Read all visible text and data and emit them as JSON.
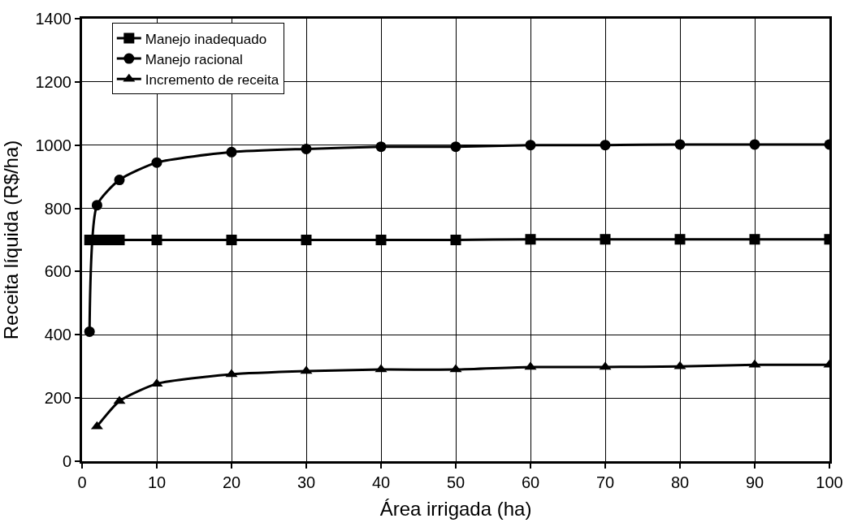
{
  "chart_data": {
    "type": "line",
    "xlabel": "Área irrigada (ha)",
    "ylabel": "Receita líquida (R$/ha)",
    "xlim": [
      0,
      100
    ],
    "xticks": [
      0,
      10,
      20,
      30,
      40,
      50,
      60,
      70,
      80,
      90,
      100
    ],
    "ylim": [
      0,
      1400
    ],
    "yticks": [
      0,
      200,
      400,
      600,
      800,
      1000,
      1200,
      1400
    ],
    "grid": true,
    "legend": "top left",
    "line_style": "solid",
    "series": [
      {
        "name": "Manejo inadequado",
        "color": "#000000",
        "marker": "square",
        "x": [
          1,
          2,
          3,
          4,
          5,
          10,
          20,
          30,
          40,
          50,
          60,
          70,
          80,
          90,
          100
        ],
        "values": [
          700,
          700,
          700,
          700,
          700,
          700,
          700,
          700,
          700,
          700,
          702,
          702,
          702,
          702,
          702
        ]
      },
      {
        "name": "Manejo racional",
        "color": "#000000",
        "marker": "circle",
        "x": [
          1,
          2,
          5,
          10,
          20,
          30,
          40,
          50,
          60,
          70,
          80,
          90,
          100
        ],
        "values": [
          410,
          810,
          890,
          945,
          978,
          988,
          995,
          995,
          1000,
          1000,
          1002,
          1002,
          1002
        ]
      },
      {
        "name": "Incremento de receita",
        "color": "#000000",
        "marker": "triangle",
        "x": [
          2,
          5,
          10,
          20,
          30,
          40,
          50,
          60,
          70,
          80,
          90,
          100
        ],
        "values": [
          110,
          190,
          245,
          275,
          285,
          290,
          290,
          298,
          298,
          300,
          305,
          305
        ]
      }
    ]
  }
}
